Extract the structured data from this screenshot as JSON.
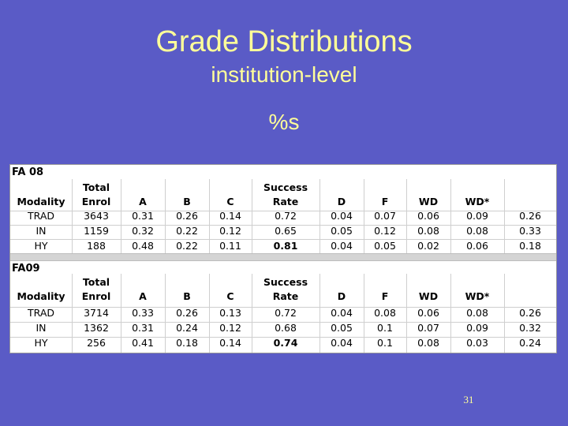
{
  "slide": {
    "title": "Grade Distributions",
    "subtitle": "institution-level",
    "pct_label": "%s",
    "page_number": "31"
  },
  "tables": [
    {
      "label": "FA 08",
      "header_top": [
        "Total",
        "Success"
      ],
      "header_bottom": [
        "Modality",
        "Enrol",
        "A",
        "B",
        "C",
        "Rate",
        "D",
        "F",
        "WD",
        "WD*",
        ""
      ],
      "rows": [
        [
          "TRAD",
          "3643",
          "0.31",
          "0.26",
          "0.14",
          "0.72",
          "0.04",
          "0.07",
          "0.06",
          "0.09",
          "0.26"
        ],
        [
          "IN",
          "1159",
          "0.32",
          "0.22",
          "0.12",
          "0.65",
          "0.05",
          "0.12",
          "0.08",
          "0.08",
          "0.33"
        ],
        [
          "HY",
          "188",
          "0.48",
          "0.22",
          "0.11",
          "0.81",
          "0.04",
          "0.05",
          "0.02",
          "0.06",
          "0.18"
        ]
      ]
    },
    {
      "label": "FA09",
      "header_top": [
        "Total",
        "Success"
      ],
      "header_bottom": [
        "Modality",
        "Enrol",
        "A",
        "B",
        "C",
        "Rate",
        "D",
        "F",
        "WD",
        "WD*",
        ""
      ],
      "rows": [
        [
          "TRAD",
          "3714",
          "0.33",
          "0.26",
          "0.13",
          "0.72",
          "0.04",
          "0.08",
          "0.06",
          "0.08",
          "0.26"
        ],
        [
          "IN",
          "1362",
          "0.31",
          "0.24",
          "0.12",
          "0.68",
          "0.05",
          "0.1",
          "0.07",
          "0.09",
          "0.32"
        ],
        [
          "HY",
          "256",
          "0.41",
          "0.18",
          "0.14",
          "0.74",
          "0.04",
          "0.1",
          "0.08",
          "0.03",
          "0.24"
        ]
      ]
    }
  ]
}
